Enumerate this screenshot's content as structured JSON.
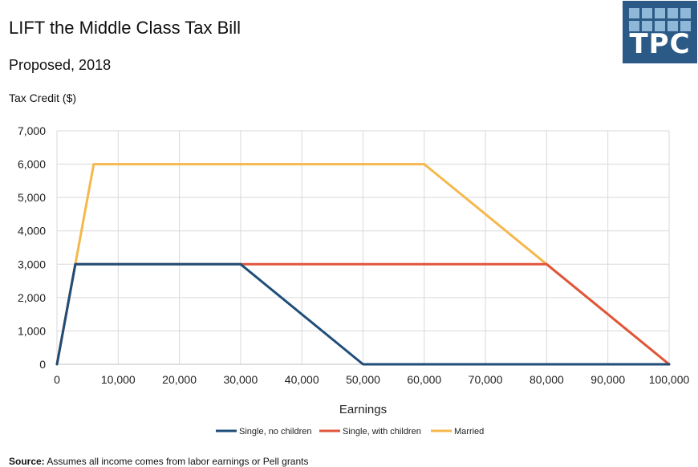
{
  "header": {
    "title": "LIFT the Middle Class Tax Bill",
    "subtitle": "Proposed, 2018",
    "logo_text": "TPC"
  },
  "footer": {
    "source_label": "Source:",
    "source_text": "Assumes all income comes from labor earnings or Pell grants"
  },
  "chart_data": {
    "type": "line",
    "title": "LIFT the Middle Class Tax Bill",
    "subtitle": "Proposed, 2018",
    "xlabel": "Earnings",
    "ylabel": "Tax Credit ($)",
    "xlim": [
      0,
      100000
    ],
    "ylim": [
      0,
      7000
    ],
    "x_ticks": [
      0,
      10000,
      20000,
      30000,
      40000,
      50000,
      60000,
      70000,
      80000,
      90000,
      100000
    ],
    "x_tick_labels": [
      "0",
      "10,000",
      "20,000",
      "30,000",
      "40,000",
      "50,000",
      "60,000",
      "70,000",
      "80,000",
      "90,000",
      "100,000"
    ],
    "y_ticks": [
      0,
      1000,
      2000,
      3000,
      4000,
      5000,
      6000,
      7000
    ],
    "y_tick_labels": [
      "0",
      "1,000",
      "2,000",
      "3,000",
      "4,000",
      "5,000",
      "6,000",
      "7,000"
    ],
    "grid": true,
    "legend_position": "bottom",
    "series": [
      {
        "name": "Single, no children",
        "color": "#1f4e79",
        "x": [
          0,
          3000,
          30000,
          50000,
          100000
        ],
        "y": [
          0,
          3000,
          3000,
          0,
          0
        ]
      },
      {
        "name": "Single, with children",
        "color": "#e0553b",
        "x": [
          0,
          3000,
          80000,
          100000
        ],
        "y": [
          0,
          3000,
          3000,
          0
        ]
      },
      {
        "name": "Married",
        "color": "#f5b84c",
        "x": [
          0,
          6000,
          60000,
          100000
        ],
        "y": [
          0,
          6000,
          6000,
          0
        ]
      }
    ]
  }
}
